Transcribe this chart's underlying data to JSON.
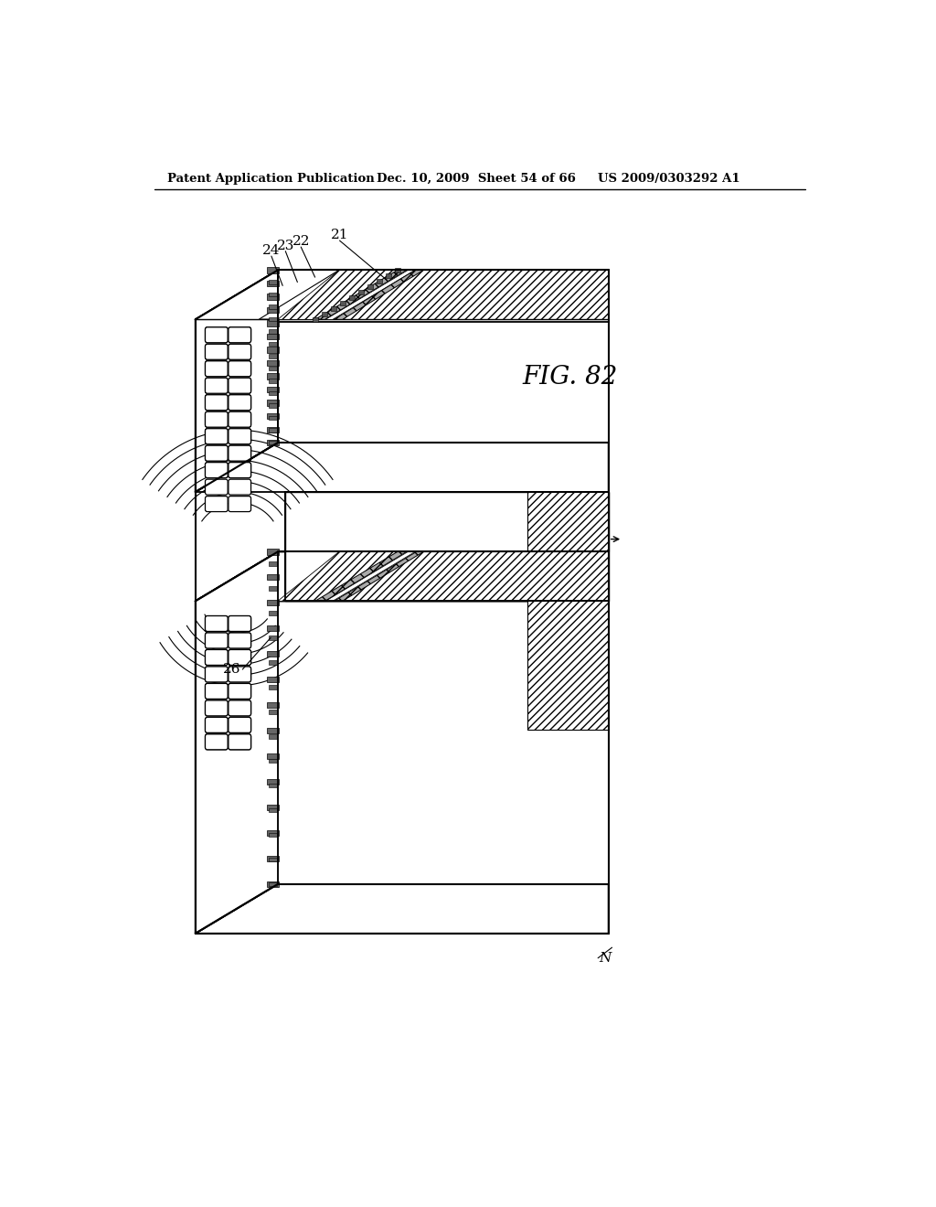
{
  "header_left": "Patent Application Publication",
  "header_mid": "Dec. 10, 2009  Sheet 54 of 66",
  "header_right": "US 2009/0303292 A1",
  "fig_label": "FIG. 82",
  "bg_color": "#ffffff"
}
